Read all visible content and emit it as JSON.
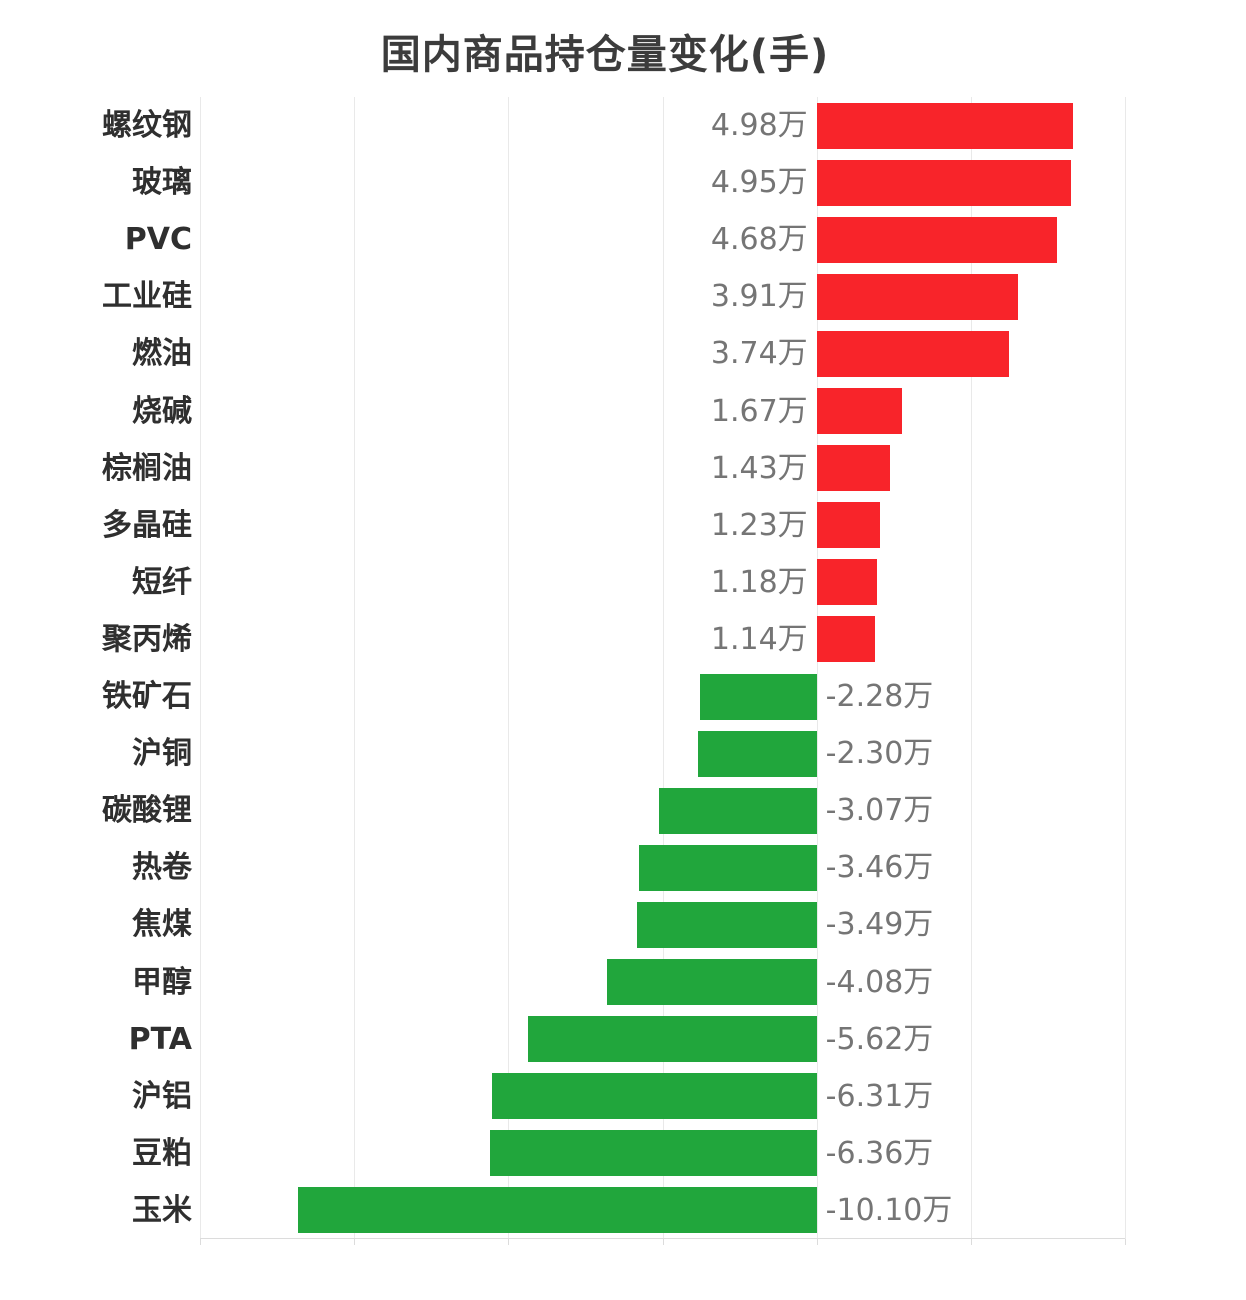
{
  "chart_data": {
    "type": "bar",
    "orientation": "horizontal",
    "title": "国内商品持仓量变化(手)",
    "unit": "万",
    "categories": [
      "螺纹钢",
      "玻璃",
      "PVC",
      "工业硅",
      "燃油",
      "烧碱",
      "棕榈油",
      "多晶硅",
      "短纤",
      "聚丙烯",
      "铁矿石",
      "沪铜",
      "碳酸锂",
      "热卷",
      "焦煤",
      "甲醇",
      "PTA",
      "沪铝",
      "豆粕",
      "玉米"
    ],
    "values": [
      4.98,
      4.95,
      4.68,
      3.91,
      3.74,
      1.67,
      1.43,
      1.23,
      1.18,
      1.14,
      -2.28,
      -2.3,
      -3.07,
      -3.46,
      -3.49,
      -4.08,
      -5.62,
      -6.31,
      -6.36,
      -10.1
    ],
    "value_labels": [
      "4.98万",
      "4.95万",
      "4.68万",
      "3.91万",
      "3.74万",
      "1.67万",
      "1.43万",
      "1.23万",
      "1.18万",
      "1.14万",
      "-2.28万",
      "-2.30万",
      "-3.07万",
      "-3.46万",
      "-3.49万",
      "-4.08万",
      "-5.62万",
      "-6.31万",
      "-6.36万",
      "-10.10万"
    ],
    "xlim": [
      -12,
      6
    ],
    "gridline_step": 3,
    "grid": true,
    "legend": "none",
    "axis_tick_labels_visible": false,
    "colors": {
      "positive": "#f8242a",
      "negative": "#21a63c",
      "title": "#3c3c3c",
      "category_label": "#2f2f2f",
      "value_label": "#757575",
      "gridline": "#e9e9e9",
      "axis_line": "#dcdcdc",
      "background": "#ffffff"
    }
  }
}
